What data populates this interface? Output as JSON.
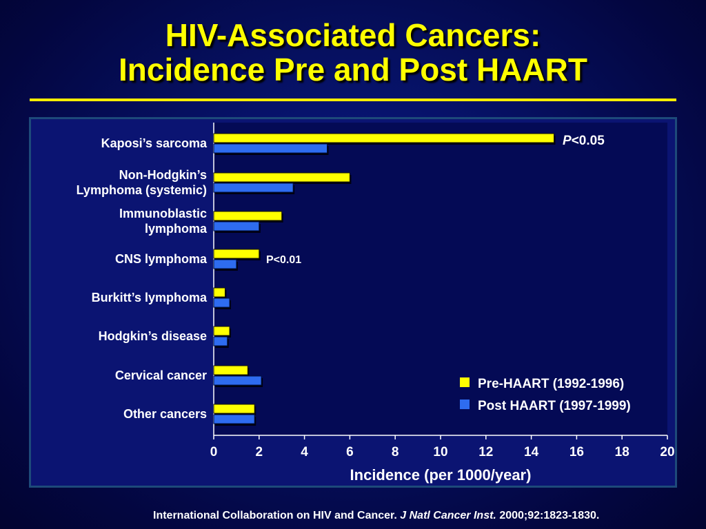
{
  "title_line1": "HIV-Associated Cancers:",
  "title_line2": "Incidence Pre and Post HAART",
  "colors": {
    "pre": "#ffff00",
    "post": "#2e6cf0",
    "title": "#ffff00",
    "text": "#ffffff"
  },
  "chart_data": {
    "type": "bar",
    "orientation": "horizontal",
    "categories": [
      [
        "Kaposi’s sarcoma"
      ],
      [
        "Non-Hodgkin’s",
        "Lymphoma (systemic)"
      ],
      [
        "Immunoblastic",
        "lymphoma"
      ],
      [
        "CNS lymphoma"
      ],
      [
        "Burkitt’s lymphoma"
      ],
      [
        "Hodgkin’s disease"
      ],
      [
        "Cervical cancer"
      ],
      [
        "Other cancers"
      ]
    ],
    "series": [
      {
        "name": "Pre-HAART (1992-1996)",
        "values": [
          15,
          6,
          3,
          2,
          0.5,
          0.7,
          1.5,
          1.8
        ]
      },
      {
        "name": "Post HAART (1997-1999)",
        "values": [
          5,
          3.5,
          2,
          1,
          0.7,
          0.6,
          2.1,
          1.8
        ]
      }
    ],
    "xlabel": "Incidence (per 1000/year)",
    "xlim": [
      0,
      20
    ],
    "xticks": [
      0,
      2,
      4,
      6,
      8,
      10,
      12,
      14,
      16,
      18,
      20
    ],
    "legend_position": "bottom-right",
    "annotations": [
      {
        "category_index": 0,
        "italic_prefix": "P",
        "text": "<0.05"
      },
      {
        "category_index": 3,
        "italic_prefix": "",
        "text": "P<0.01"
      }
    ]
  },
  "footer": {
    "text": "International Collaboration on HIV and Cancer. ",
    "journal": "J Natl Cancer Inst.",
    "citation": " 2000;92:1823-1830."
  }
}
